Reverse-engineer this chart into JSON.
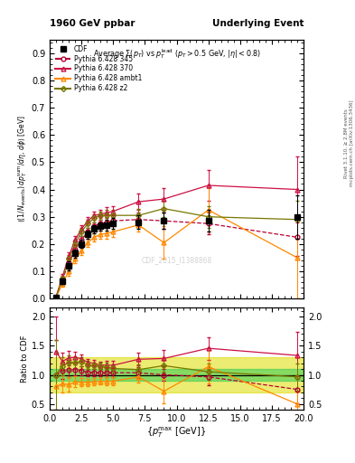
{
  "title_left": "1960 GeV ppbar",
  "title_right": "Underlying Event",
  "right_label": "Rivet 3.1.10, ≥ 2.8M events",
  "right_label2": "mcplots.cern.ch [arXiv:1306.3436]",
  "watermark": "CDF_2015_I1388868",
  "ylabel_main": "{(1/N_{events}) dp_T^{sum}/dη, dφ [GeV]}",
  "ylabel_ratio": "Ratio to CDF",
  "xlabel": "{p_T^{max} [GeV]}",
  "xlim": [
    0,
    20
  ],
  "ylim_main": [
    0,
    0.95
  ],
  "ylim_ratio": [
    0.4,
    2.15
  ],
  "yticks_main": [
    0.0,
    0.1,
    0.2,
    0.3,
    0.4,
    0.5,
    0.6,
    0.7,
    0.8,
    0.9
  ],
  "yticks_ratio": [
    0.5,
    1.0,
    1.5,
    2.0
  ],
  "cdf_x": [
    0.5,
    1.0,
    1.5,
    2.0,
    2.5,
    3.0,
    3.5,
    4.0,
    4.5,
    5.0,
    7.0,
    9.0,
    12.5,
    19.5
  ],
  "cdf_y": [
    0.005,
    0.065,
    0.12,
    0.165,
    0.2,
    0.235,
    0.255,
    0.265,
    0.27,
    0.275,
    0.28,
    0.285,
    0.285,
    0.3
  ],
  "cdf_yerr": [
    0.003,
    0.01,
    0.015,
    0.015,
    0.015,
    0.015,
    0.015,
    0.015,
    0.02,
    0.02,
    0.025,
    0.03,
    0.04,
    0.08
  ],
  "p345_x": [
    0.5,
    1.0,
    1.5,
    2.0,
    2.5,
    3.0,
    3.5,
    4.0,
    4.5,
    5.0,
    7.0,
    9.0,
    12.5,
    19.5
  ],
  "p345_y": [
    0.005,
    0.07,
    0.13,
    0.18,
    0.215,
    0.245,
    0.265,
    0.275,
    0.28,
    0.285,
    0.29,
    0.285,
    0.275,
    0.225
  ],
  "p345_yerr": [
    0.003,
    0.01,
    0.015,
    0.015,
    0.015,
    0.015,
    0.015,
    0.015,
    0.02,
    0.02,
    0.025,
    0.03,
    0.04,
    0.07
  ],
  "p370_x": [
    0.5,
    1.0,
    1.5,
    2.0,
    2.5,
    3.0,
    3.5,
    4.0,
    4.5,
    5.0,
    7.0,
    9.0,
    12.5,
    19.5
  ],
  "p370_y": [
    0.007,
    0.08,
    0.155,
    0.215,
    0.255,
    0.285,
    0.305,
    0.31,
    0.315,
    0.32,
    0.355,
    0.365,
    0.415,
    0.4
  ],
  "p370_yerr": [
    0.003,
    0.01,
    0.015,
    0.015,
    0.015,
    0.015,
    0.015,
    0.015,
    0.02,
    0.02,
    0.03,
    0.04,
    0.055,
    0.12
  ],
  "pambt1_x": [
    0.5,
    1.0,
    1.5,
    2.0,
    2.5,
    3.0,
    3.5,
    4.0,
    4.5,
    5.0,
    7.0,
    9.0,
    12.5,
    19.5
  ],
  "pambt1_y": [
    0.004,
    0.055,
    0.1,
    0.145,
    0.175,
    0.205,
    0.225,
    0.235,
    0.24,
    0.245,
    0.27,
    0.205,
    0.325,
    0.15
  ],
  "pambt1_yerr": [
    0.003,
    0.01,
    0.015,
    0.015,
    0.015,
    0.015,
    0.015,
    0.015,
    0.02,
    0.02,
    0.025,
    0.06,
    0.08,
    0.15
  ],
  "pz2_x": [
    0.5,
    1.0,
    1.5,
    2.0,
    2.5,
    3.0,
    3.5,
    4.0,
    4.5,
    5.0,
    7.0,
    9.0,
    12.5,
    19.5
  ],
  "pz2_y": [
    0.005,
    0.075,
    0.145,
    0.2,
    0.245,
    0.275,
    0.295,
    0.305,
    0.305,
    0.305,
    0.305,
    0.33,
    0.3,
    0.29
  ],
  "pz2_yerr": [
    0.003,
    0.01,
    0.015,
    0.015,
    0.015,
    0.015,
    0.015,
    0.015,
    0.02,
    0.02,
    0.025,
    0.03,
    0.04,
    0.07
  ],
  "color_cdf": "#000000",
  "color_345": "#bb0033",
  "color_370": "#cc1144",
  "color_ambt1": "#ff8800",
  "color_z2": "#777700",
  "band_green_inner": [
    0.9,
    1.1
  ],
  "band_yellow_outer": [
    0.7,
    1.3
  ],
  "band_green_color": "#33cc55",
  "band_yellow_color": "#dddd00"
}
